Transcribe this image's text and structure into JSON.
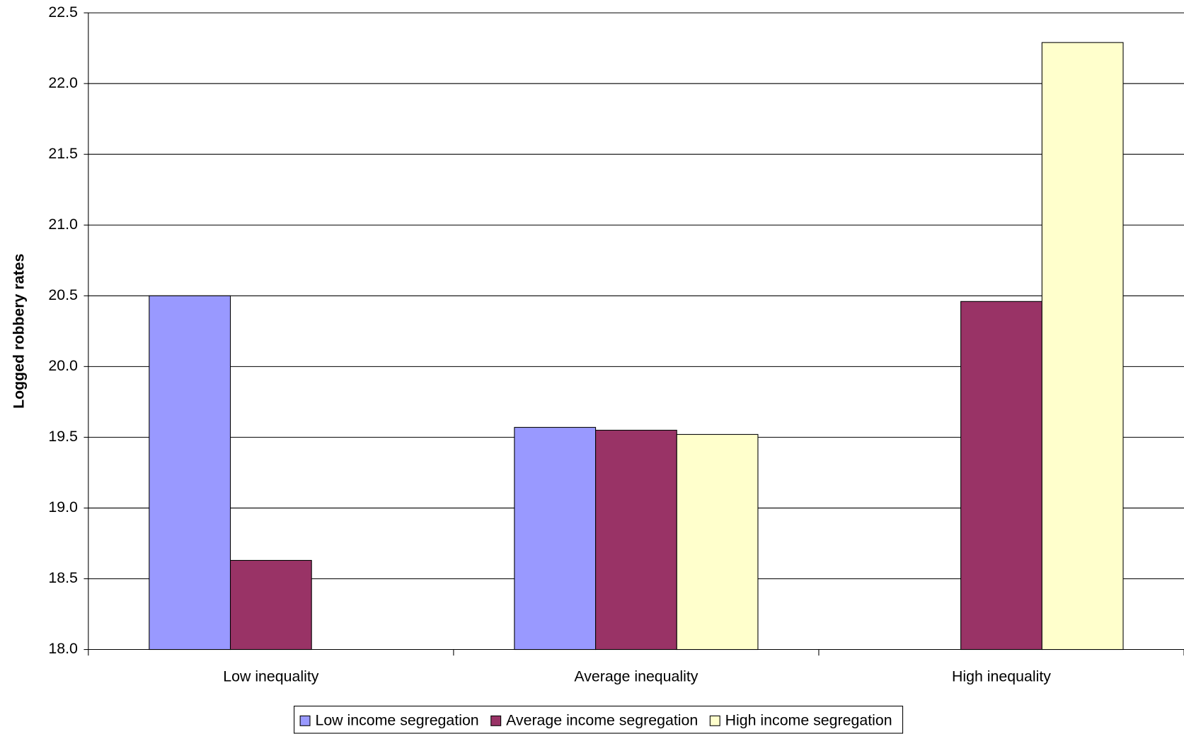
{
  "chart_data": {
    "type": "bar",
    "y_label": "Logged robbery rates",
    "categories": [
      "Low inequality",
      "Average inequality",
      "High inequality"
    ],
    "series": [
      {
        "name": "Low income segregation",
        "color": "#9999ff",
        "values": [
          20.5,
          19.57,
          null
        ]
      },
      {
        "name": "Average income segregation",
        "color": "#993366",
        "values": [
          18.63,
          19.55,
          20.46
        ]
      },
      {
        "name": "High income segregation",
        "color": "#ffffcc",
        "values": [
          null,
          19.52,
          22.29
        ]
      }
    ],
    "ylim": [
      18.0,
      22.5
    ],
    "yticks": [
      {
        "value": 18,
        "label": "18.0"
      },
      18.5,
      {
        "value": 19,
        "label": "19.0"
      },
      19.5,
      {
        "value": 20,
        "label": "20.0"
      },
      20.5,
      {
        "value": 21,
        "label": "21.0"
      },
      21.5,
      {
        "value": 22,
        "label": "22.0"
      },
      22.5
    ],
    "grid": true,
    "legend": "bottom"
  }
}
